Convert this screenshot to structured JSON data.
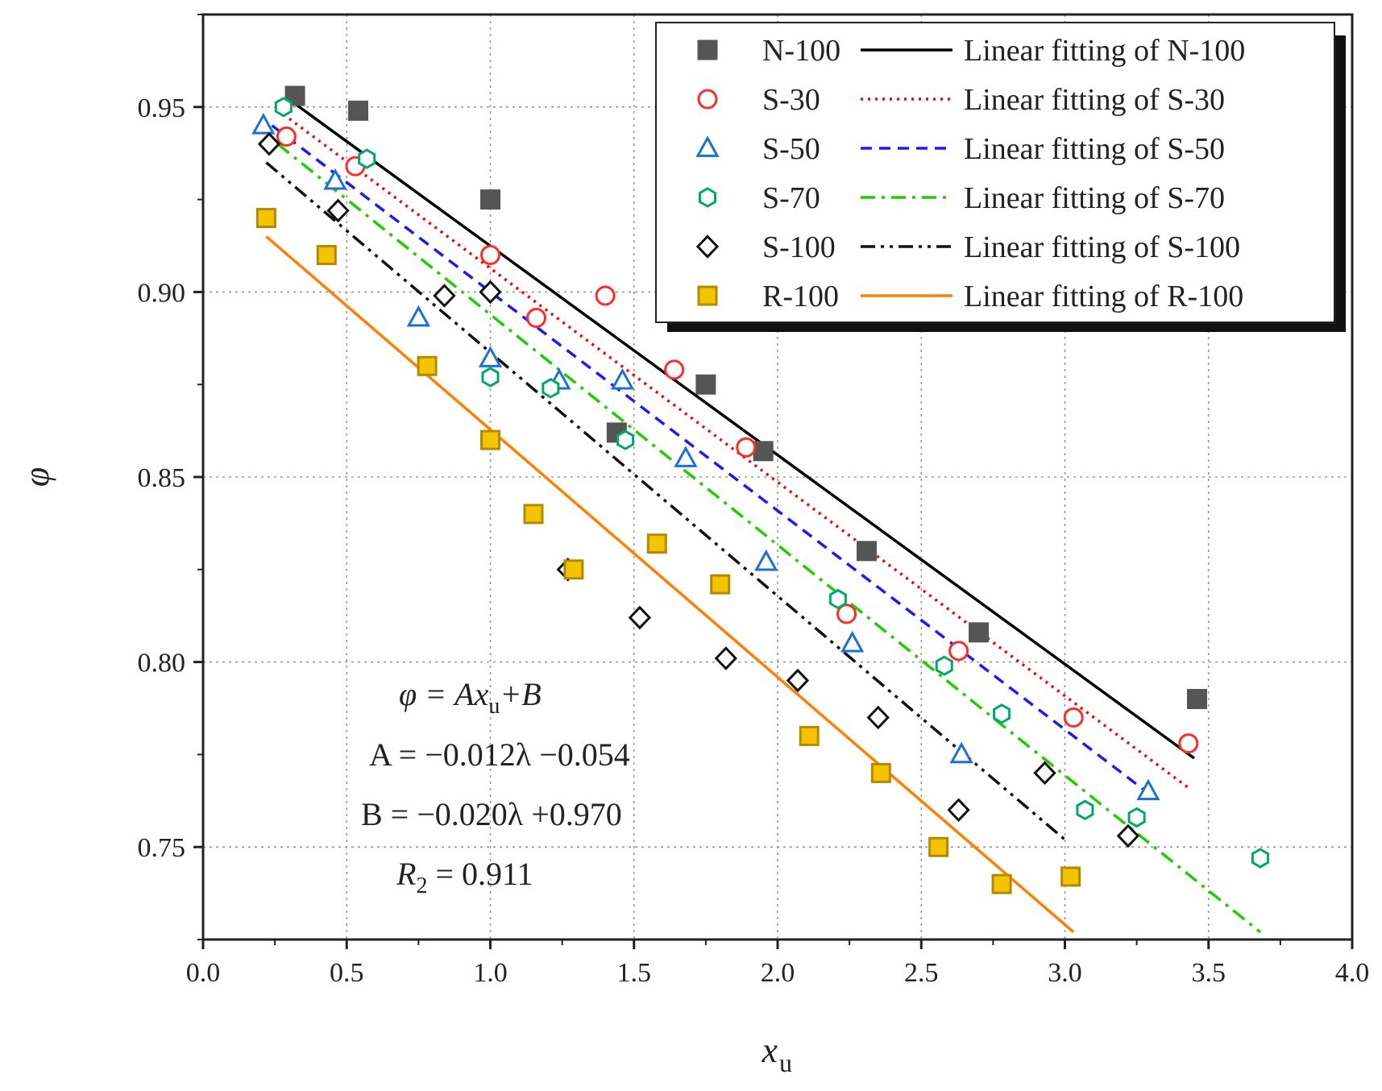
{
  "chart_data": {
    "type": "scatter",
    "xlabel": "x",
    "xlabel_sub": "u",
    "ylabel": "φ",
    "xlim": [
      0.0,
      4.0
    ],
    "ylim": [
      0.725,
      0.975
    ],
    "xticks": [
      "0.0",
      "0.5",
      "1.0",
      "1.5",
      "2.0",
      "2.5",
      "3.0",
      "3.5",
      "4.0"
    ],
    "yticks": [
      "0.75",
      "0.80",
      "0.85",
      "0.90",
      "0.95"
    ],
    "xtick_values": [
      0.0,
      0.5,
      1.0,
      1.5,
      2.0,
      2.5,
      3.0,
      3.5,
      4.0
    ],
    "ytick_values": [
      0.75,
      0.8,
      0.85,
      0.9,
      0.95
    ],
    "grid": true,
    "legend_position": "top-right",
    "series": [
      {
        "name": "N-100",
        "fit_label": "Linear fitting of N-100",
        "marker": "filled-square",
        "color": "#555555",
        "line_color": "#000000",
        "dash": "solid",
        "x": [
          0.32,
          0.54,
          1.0,
          1.44,
          1.75,
          1.95,
          2.31,
          2.7,
          3.46
        ],
        "y": [
          0.953,
          0.949,
          0.925,
          0.862,
          0.875,
          0.857,
          0.83,
          0.808,
          0.79
        ],
        "fit": [
          [
            0.3,
            0.952
          ],
          [
            3.45,
            0.774
          ]
        ]
      },
      {
        "name": "S-30",
        "fit_label": "Linear fitting of S-30",
        "marker": "circle",
        "color": "#ff2a2a",
        "line_color": "#ff0000",
        "dash": "dotted",
        "x": [
          0.29,
          0.53,
          1.0,
          1.16,
          1.4,
          1.64,
          1.89,
          2.24,
          2.63,
          3.03,
          3.43
        ],
        "y": [
          0.942,
          0.934,
          0.91,
          0.893,
          0.899,
          0.879,
          0.858,
          0.813,
          0.803,
          0.785,
          0.778
        ],
        "fit": [
          [
            0.28,
            0.948
          ],
          [
            3.43,
            0.766
          ]
        ]
      },
      {
        "name": "S-50",
        "fit_label": "Linear fitting of S-50",
        "marker": "triangle",
        "color": "#1e6fd9",
        "line_color": "#1a1aff",
        "dash": "dashed",
        "x": [
          0.21,
          0.46,
          0.75,
          1.0,
          1.24,
          1.46,
          1.68,
          1.96,
          2.26,
          2.64,
          3.29
        ],
        "y": [
          0.945,
          0.93,
          0.893,
          0.882,
          0.876,
          0.876,
          0.855,
          0.827,
          0.805,
          0.775,
          0.765
        ],
        "fit": [
          [
            0.24,
            0.945
          ],
          [
            3.3,
            0.764
          ]
        ]
      },
      {
        "name": "S-70",
        "fit_label": "Linear fitting of S-70",
        "marker": "hexagon",
        "color": "#00a86b",
        "line_color": "#22cc00",
        "dash": "dash-dot",
        "x": [
          0.28,
          0.57,
          1.0,
          1.21,
          1.47,
          2.21,
          2.58,
          2.78,
          3.07,
          3.25,
          3.68
        ],
        "y": [
          0.95,
          0.936,
          0.877,
          0.874,
          0.86,
          0.817,
          0.799,
          0.786,
          0.76,
          0.758,
          0.747
        ],
        "fit": [
          [
            0.26,
            0.94
          ],
          [
            3.68,
            0.727
          ]
        ]
      },
      {
        "name": "S-100",
        "fit_label": "Linear fitting of S-100",
        "marker": "diamond",
        "color": "#111111",
        "line_color": "#111111",
        "dash": "dash-dot-dot",
        "x": [
          0.23,
          0.47,
          0.84,
          1.0,
          1.27,
          1.52,
          1.82,
          2.07,
          2.35,
          2.63,
          2.93,
          3.22
        ],
        "y": [
          0.94,
          0.922,
          0.899,
          0.9,
          0.825,
          0.812,
          0.801,
          0.795,
          0.785,
          0.76,
          0.77,
          0.753
        ],
        "fit": [
          [
            0.22,
            0.935
          ],
          [
            3.0,
            0.752
          ]
        ]
      },
      {
        "name": "R-100",
        "fit_label": "Linear fitting of R-100",
        "marker": "square",
        "color": "#f5c400",
        "line_color": "#ff8000",
        "dash": "solid",
        "x": [
          0.22,
          0.43,
          0.78,
          1.0,
          1.15,
          1.29,
          1.58,
          1.8,
          2.11,
          2.36,
          2.56,
          2.78,
          3.02
        ],
        "y": [
          0.92,
          0.91,
          0.88,
          0.86,
          0.84,
          0.825,
          0.832,
          0.821,
          0.78,
          0.77,
          0.75,
          0.74,
          0.742
        ],
        "fit": [
          [
            0.22,
            0.915
          ],
          [
            3.03,
            0.727
          ]
        ]
      }
    ],
    "annotations": {
      "eq1": "φ = Ax",
      "eq1_sub": "u",
      "eq1_tail": "+B",
      "eq2": "A = −0.012λ −0.054",
      "eq3": "B = −0.020λ +0.970",
      "eq4_r": "R",
      "eq4_sub": "2",
      "eq4_tail": " = 0.911"
    }
  }
}
